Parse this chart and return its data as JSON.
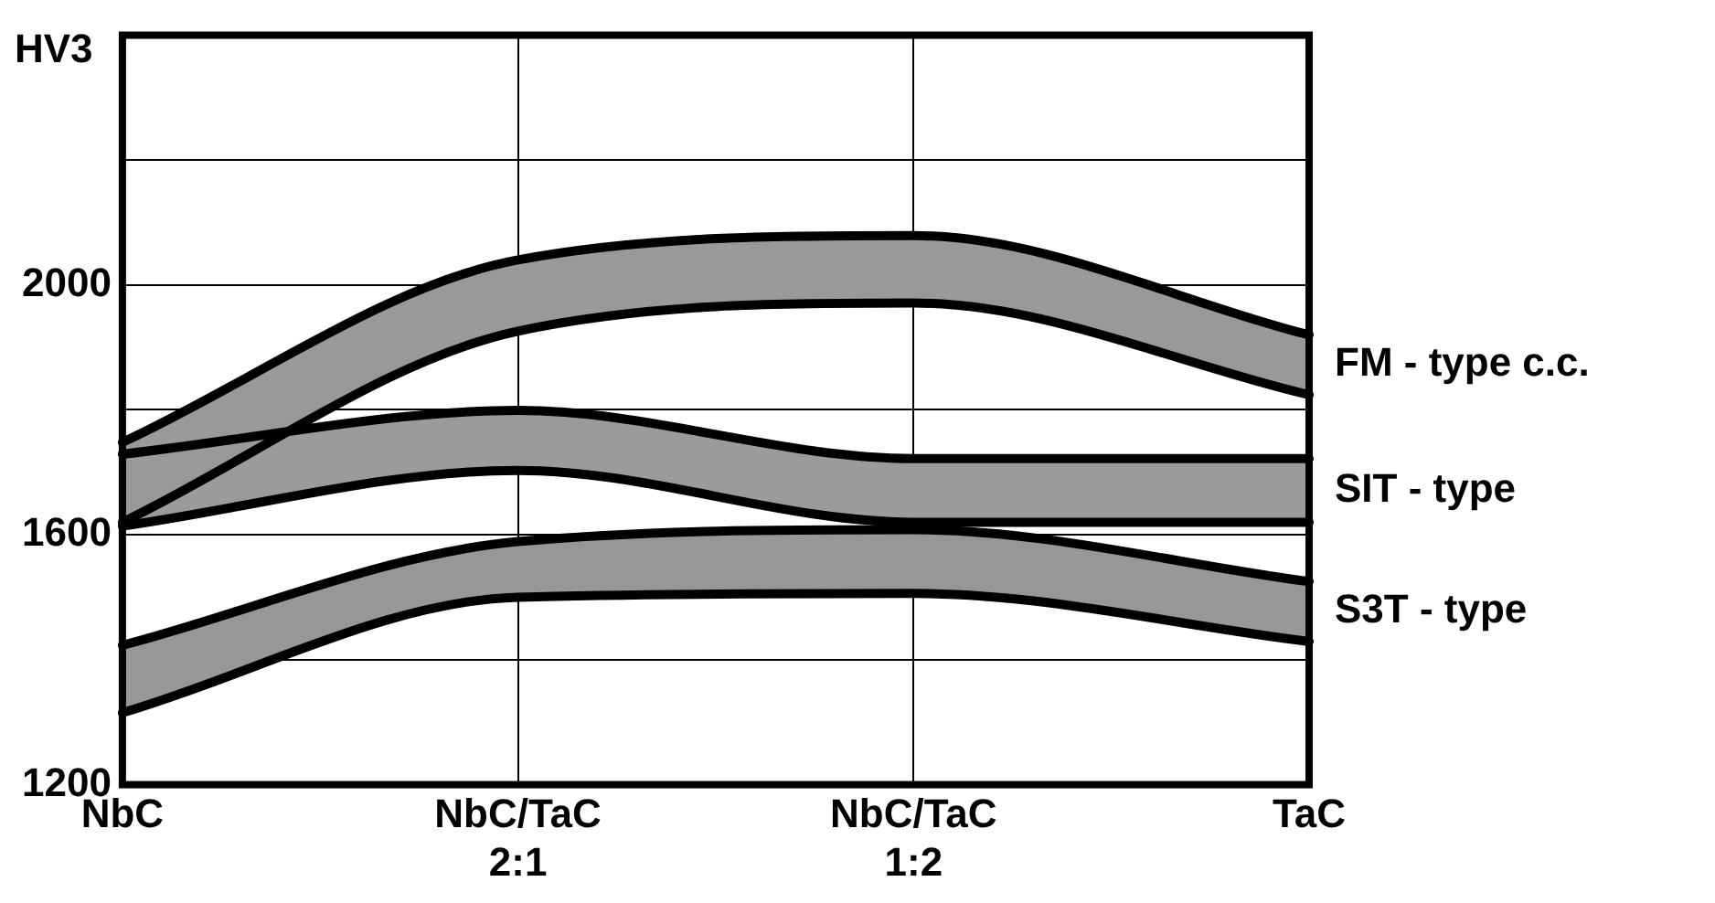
{
  "chart_data": {
    "type": "line",
    "ylabel": "HV3",
    "categories": [
      "NbC",
      "NbC/TaC 2:1",
      "NbC/TaC 1:2",
      "TaC"
    ],
    "ylim": [
      1200,
      2400
    ],
    "yticks": [
      1200,
      {
        "value": 1400,
        "label": null
      },
      1600,
      {
        "value": 1800,
        "label": null
      },
      2000,
      {
        "value": 2200,
        "label": null
      },
      {
        "value": 2400,
        "label": null
      }
    ],
    "grid": true,
    "series": [
      {
        "name": "FM - type c.c.",
        "color": "#000000",
        "values": [
          1748,
          2040,
          2079,
          1920
        ],
        "upper": [
          1748,
          2040,
          2079,
          1920
        ],
        "lower": [
          1620,
          1926,
          1971,
          1824
        ]
      },
      {
        "name": "SIT - type",
        "color": "#000000",
        "values": [
          1729,
          1799,
          1722,
          1722
        ],
        "upper": [
          1729,
          1799,
          1722,
          1722
        ],
        "lower": [
          1614,
          1703,
          1620,
          1620
        ]
      },
      {
        "name": "S3T - type",
        "color": "#000000",
        "values": [
          1423,
          1589,
          1608,
          1525
        ],
        "upper": [
          1423,
          1589,
          1608,
          1525
        ],
        "lower": [
          1315,
          1500,
          1506,
          1429
        ]
      }
    ]
  }
}
